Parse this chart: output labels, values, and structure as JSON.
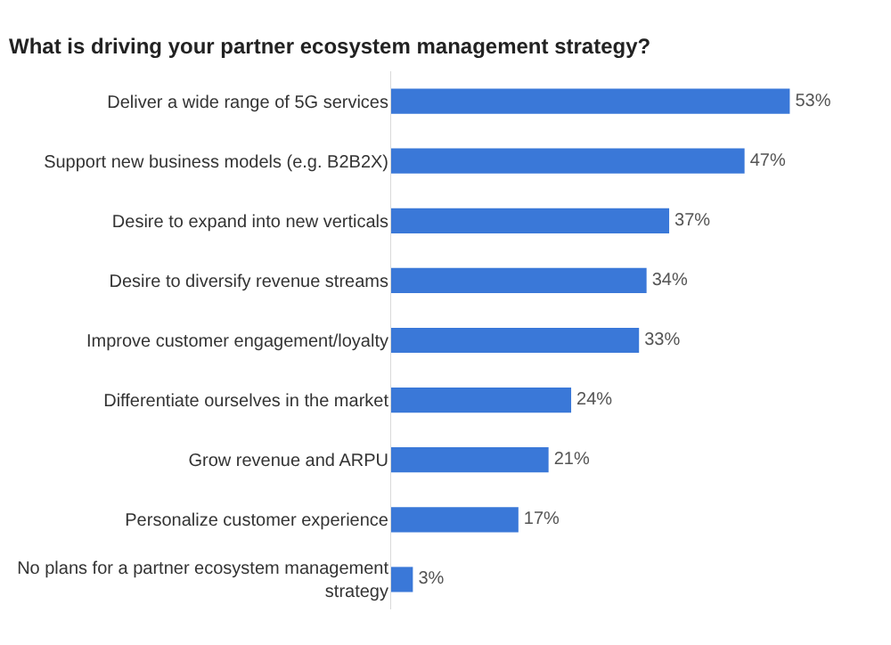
{
  "chart_data": {
    "type": "bar",
    "orientation": "horizontal",
    "title": "What is driving your partner ecosystem management strategy?",
    "categories": [
      "Deliver a wide range of 5G services",
      "Support new business models (e.g. B2B2X)",
      "Desire to expand into new verticals",
      "Desire to diversify revenue streams",
      "Improve customer engagement/loyalty",
      "Differentiate ourselves in the market",
      "Grow revenue and ARPU",
      "Personalize customer experience",
      "No plans for a partner ecosystem management strategy"
    ],
    "values": [
      53,
      47,
      37,
      34,
      33,
      24,
      21,
      17,
      3
    ],
    "value_labels": [
      "53%",
      "47%",
      "37%",
      "34%",
      "33%",
      "24%",
      "21%",
      "17%",
      "3%"
    ],
    "color": "#3a78d8"
  }
}
